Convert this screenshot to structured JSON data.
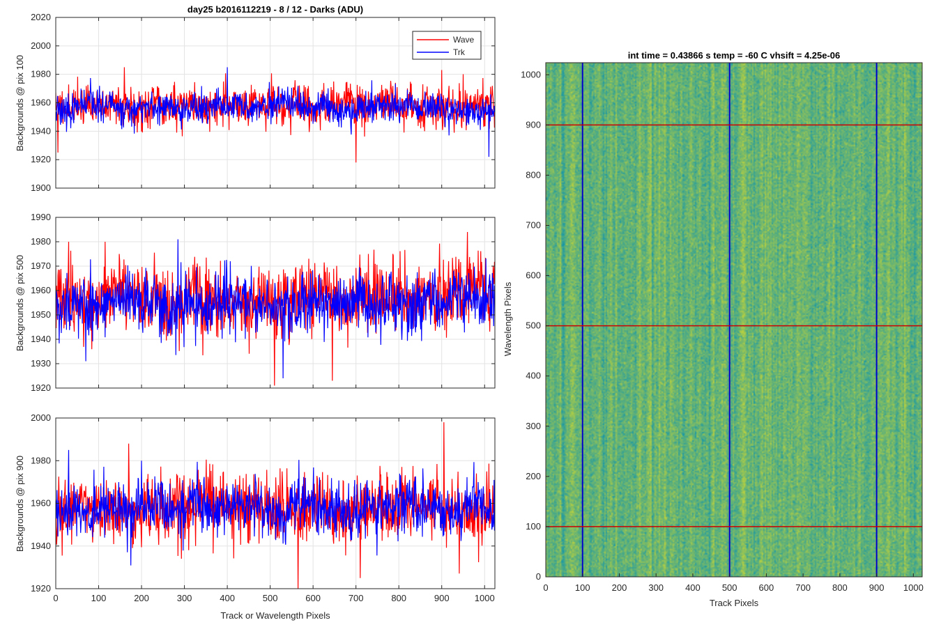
{
  "chart_data": [
    {
      "type": "line",
      "title": "day25 b2016112219 - 8 / 12 - Darks (ADU)",
      "xlabel": "",
      "ylabel": "Backgrounds @ pix 100",
      "xlim": [
        0,
        1024
      ],
      "ylim": [
        1900,
        2020
      ],
      "xticks": [
        0,
        100,
        200,
        300,
        400,
        500,
        600,
        700,
        800,
        900,
        1000
      ],
      "xtick_labels": [],
      "yticks": [
        1900,
        1920,
        1940,
        1960,
        1980,
        2000,
        2020
      ],
      "ytick_labels": [
        "1900",
        "1920",
        "1940",
        "1960",
        "1980",
        "2000",
        "2020"
      ],
      "grid": true,
      "legend": "top-right",
      "series": [
        {
          "name": "Wave",
          "color": "#ff0000",
          "mean": 1958,
          "noise": 8,
          "seed": 11,
          "drift": 0,
          "spikes": [
            [
              160,
              1985
            ],
            [
              700,
              1918
            ],
            [
              900,
              1983
            ],
            [
              5,
              1925
            ]
          ]
        },
        {
          "name": "Trk",
          "color": "#0000ff",
          "mean": 1956,
          "noise": 6,
          "seed": 23,
          "drift": 0,
          "spikes": [
            [
              400,
              1985
            ],
            [
              1010,
              1922
            ]
          ]
        }
      ]
    },
    {
      "type": "line",
      "title": "",
      "xlabel": "",
      "ylabel": "Backgrounds @ pix 500",
      "xlim": [
        0,
        1024
      ],
      "ylim": [
        1920,
        1990
      ],
      "xticks": [
        0,
        100,
        200,
        300,
        400,
        500,
        600,
        700,
        800,
        900,
        1000
      ],
      "xtick_labels": [],
      "yticks": [
        1920,
        1930,
        1940,
        1950,
        1960,
        1970,
        1980,
        1990
      ],
      "ytick_labels": [
        "1920",
        "1930",
        "1940",
        "1950",
        "1960",
        "1970",
        "1980",
        "1990"
      ],
      "grid": true,
      "legend": "none",
      "series": [
        {
          "name": "Wave",
          "color": "#ff0000",
          "mean": 1957,
          "noise": 8,
          "seed": 37,
          "drift": 0,
          "spikes": [
            [
              30,
              1980
            ],
            [
              115,
              1980
            ],
            [
              510,
              1921
            ],
            [
              645,
              1923
            ]
          ]
        },
        {
          "name": "Trk",
          "color": "#0000ff",
          "mean": 1955,
          "noise": 7,
          "seed": 53,
          "drift": 0,
          "spikes": [
            [
              285,
              1981
            ],
            [
              530,
              1924
            ],
            [
              70,
              1931
            ]
          ]
        }
      ]
    },
    {
      "type": "line",
      "title": "",
      "xlabel": "Track or Wavelength Pixels",
      "ylabel": "Backgrounds @ pix 900",
      "xlim": [
        0,
        1024
      ],
      "ylim": [
        1920,
        2000
      ],
      "xticks": [
        0,
        100,
        200,
        300,
        400,
        500,
        600,
        700,
        800,
        900,
        1000
      ],
      "xtick_labels": [
        "0",
        "100",
        "200",
        "300",
        "400",
        "500",
        "600",
        "700",
        "800",
        "900",
        "1000"
      ],
      "yticks": [
        1920,
        1940,
        1960,
        1980,
        2000
      ],
      "ytick_labels": [
        "1920",
        "1940",
        "1960",
        "1980",
        "2000"
      ],
      "grid": true,
      "legend": "none",
      "series": [
        {
          "name": "Wave",
          "color": "#ff0000",
          "mean": 1957,
          "noise": 9,
          "seed": 71,
          "drift": 0,
          "spikes": [
            [
              905,
              1998
            ],
            [
              565,
              1920
            ],
            [
              170,
              1988
            ],
            [
              710,
              1925
            ]
          ]
        },
        {
          "name": "Trk",
          "color": "#0000ff",
          "mean": 1958,
          "noise": 7,
          "seed": 89,
          "drift": 0,
          "spikes": [
            [
              30,
              1985
            ],
            [
              200,
              1980
            ]
          ]
        }
      ]
    },
    {
      "type": "heatmap",
      "title": "int time = 0.43866 s    temp = -60 C    vhsift = 4.25e-06",
      "xlabel": "Track Pixels",
      "ylabel": "Wavelength Pixels",
      "xlim": [
        0,
        1024
      ],
      "ylim": [
        0,
        1024
      ],
      "xticks": [
        0,
        100,
        200,
        300,
        400,
        500,
        600,
        700,
        800,
        900,
        1000
      ],
      "xtick_labels": [
        "0",
        "100",
        "200",
        "300",
        "400",
        "500",
        "600",
        "700",
        "800",
        "900",
        "1000"
      ],
      "yticks": [
        0,
        100,
        200,
        300,
        400,
        500,
        600,
        700,
        800,
        900,
        1000
      ],
      "ytick_labels": [
        "0",
        "100",
        "200",
        "300",
        "400",
        "500",
        "600",
        "700",
        "800",
        "900",
        "1000"
      ],
      "colormap": "parula",
      "vertical_lines": {
        "x": [
          100,
          500,
          900
        ],
        "color": "#0000cc"
      },
      "horizontal_lines": {
        "y": [
          100,
          500,
          900
        ],
        "color": "#cc0000"
      }
    }
  ]
}
